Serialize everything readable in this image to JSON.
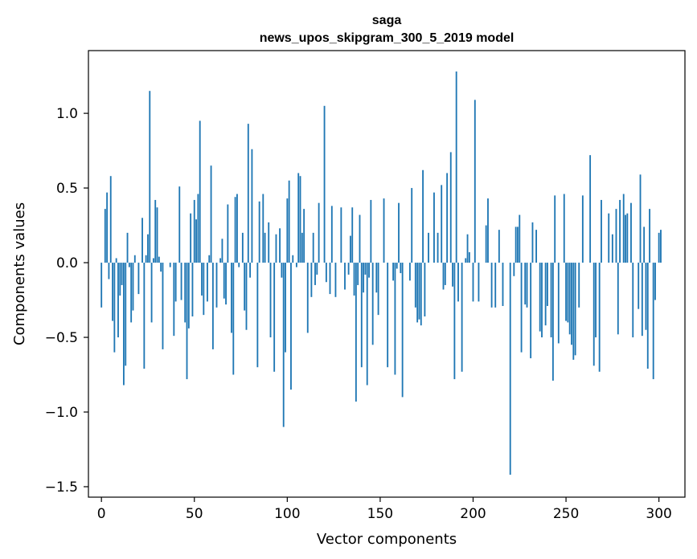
{
  "chart_data": {
    "type": "bar",
    "title": "saga",
    "subtitle": "news_upos_skipgram_300_5_2019 model",
    "xlabel": "Vector components",
    "ylabel": "Components values",
    "xlim": [
      -7,
      314
    ],
    "ylim": [
      -1.57,
      1.42
    ],
    "xticks": [
      0,
      50,
      100,
      150,
      200,
      250,
      300
    ],
    "yticks": [
      -1.5,
      -1.0,
      -0.5,
      0.0,
      0.5,
      1.0
    ],
    "ytick_labels": [
      "−1.5",
      "−1.0",
      "−0.5",
      "0.0",
      "0.5",
      "1.0"
    ],
    "bar_color": "#1f77b4",
    "grid": false,
    "values": [
      -0.3,
      0.0,
      0.36,
      0.47,
      -0.11,
      0.58,
      -0.39,
      -0.6,
      0.03,
      -0.5,
      -0.22,
      -0.15,
      -0.82,
      -0.69,
      0.2,
      -0.03,
      -0.4,
      -0.32,
      0.05,
      0.0,
      -0.21,
      0.0,
      0.3,
      -0.71,
      0.05,
      0.19,
      1.15,
      -0.4,
      0.03,
      0.42,
      0.37,
      0.04,
      -0.06,
      -0.58,
      0.0,
      0.0,
      0.0,
      -0.03,
      0.0,
      -0.49,
      -0.26,
      0.0,
      0.51,
      -0.25,
      0.0,
      -0.4,
      -0.78,
      -0.44,
      0.33,
      -0.36,
      0.42,
      0.29,
      0.46,
      0.95,
      -0.22,
      -0.35,
      0.0,
      -0.26,
      0.05,
      0.65,
      -0.58,
      0.0,
      -0.3,
      0.0,
      0.03,
      0.16,
      -0.24,
      -0.28,
      0.39,
      0.0,
      -0.47,
      -0.75,
      0.44,
      0.46,
      -0.03,
      0.0,
      0.2,
      -0.32,
      -0.45,
      0.93,
      -0.1,
      0.76,
      0.0,
      0.0,
      -0.7,
      0.41,
      0.0,
      0.46,
      0.2,
      0.0,
      0.27,
      -0.5,
      0.0,
      -0.73,
      0.19,
      0.0,
      0.23,
      -0.1,
      -1.1,
      -0.6,
      0.43,
      0.55,
      -0.85,
      0.05,
      0.0,
      -0.03,
      0.6,
      0.58,
      0.2,
      0.36,
      0.0,
      -0.47,
      0.0,
      -0.23,
      0.2,
      -0.15,
      -0.08,
      0.4,
      0.0,
      0.0,
      1.05,
      -0.13,
      0.0,
      -0.21,
      0.38,
      0.0,
      -0.23,
      0.0,
      0.0,
      0.37,
      0.0,
      -0.18,
      0.0,
      -0.08,
      0.18,
      0.37,
      -0.22,
      -0.93,
      -0.15,
      0.32,
      -0.7,
      -0.2,
      -0.08,
      -0.82,
      -0.1,
      0.42,
      -0.55,
      0.0,
      -0.2,
      -0.35,
      0.0,
      0.0,
      0.43,
      0.0,
      -0.7,
      0.0,
      0.0,
      -0.12,
      -0.75,
      -0.04,
      0.4,
      -0.07,
      -0.9,
      0.0,
      0.0,
      0.0,
      -0.12,
      0.5,
      0.0,
      -0.3,
      -0.4,
      -0.38,
      -0.42,
      0.62,
      -0.36,
      0.0,
      0.2,
      0.0,
      0.0,
      0.47,
      0.0,
      0.2,
      0.0,
      0.52,
      -0.18,
      -0.15,
      0.6,
      0.0,
      0.74,
      -0.16,
      -0.78,
      1.28,
      -0.26,
      0.0,
      -0.73,
      0.0,
      0.03,
      0.19,
      0.07,
      0.0,
      -0.26,
      1.09,
      0.0,
      -0.26,
      0.0,
      0.0,
      0.0,
      0.25,
      0.43,
      0.0,
      -0.3,
      0.0,
      -0.3,
      0.0,
      0.22,
      0.0,
      -0.29,
      0.0,
      0.0,
      0.0,
      -1.42,
      0.0,
      -0.09,
      0.24,
      0.24,
      0.32,
      -0.6,
      0.0,
      -0.28,
      -0.3,
      0.0,
      -0.64,
      0.27,
      0.0,
      0.22,
      0.0,
      -0.46,
      -0.5,
      0.0,
      -0.42,
      -0.29,
      0.0,
      -0.5,
      -0.79,
      0.45,
      0.0,
      -0.54,
      0.0,
      0.0,
      0.46,
      -0.39,
      -0.4,
      -0.48,
      -0.55,
      -0.65,
      -0.62,
      0.0,
      -0.3,
      0.0,
      0.45,
      0.0,
      0.0,
      0.0,
      0.72,
      0.0,
      -0.69,
      -0.5,
      0.0,
      -0.73,
      0.42,
      0.0,
      0.0,
      0.0,
      0.33,
      0.0,
      0.19,
      0.0,
      0.36,
      -0.48,
      0.42,
      0.0,
      0.46,
      0.32,
      0.33,
      0.0,
      0.4,
      -0.5,
      0.0,
      0.0,
      -0.31,
      0.59,
      -0.49,
      0.24,
      -0.45,
      -0.71,
      0.36,
      0.0,
      -0.78,
      -0.25,
      0.0,
      0.2,
      0.22
    ]
  }
}
